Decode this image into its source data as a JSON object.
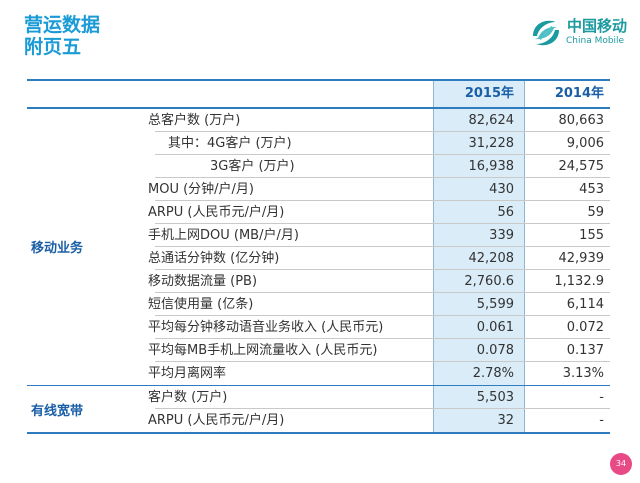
{
  "header": {
    "title_line1": "营运数据",
    "title_line2": "附页五",
    "logo_cn": "中国移动",
    "logo_en": "China Mobile"
  },
  "table": {
    "col_headers": [
      "2015年",
      "2014年"
    ],
    "sections": [
      {
        "name": "移动业务",
        "rows": [
          {
            "label": "总客户数 (万户)",
            "v2015": "82,624",
            "v2014": "80,663"
          },
          {
            "label": "其中：4G客户 (万户)",
            "v2015": "31,228",
            "v2014": "9,006"
          },
          {
            "label": "3G客户 (万户)",
            "v2015": "16,938",
            "v2014": "24,575"
          },
          {
            "label": "MOU (分钟/户/月)",
            "v2015": "430",
            "v2014": "453"
          },
          {
            "label": "ARPU (人民币元/户/月)",
            "v2015": "56",
            "v2014": "59"
          },
          {
            "label": "手机上网DOU (MB/户/月)",
            "v2015": "339",
            "v2014": "155"
          },
          {
            "label": "总通话分钟数 (亿分钟)",
            "v2015": "42,208",
            "v2014": "42,939"
          },
          {
            "label": "移动数据流量 (PB)",
            "v2015": "2,760.6",
            "v2014": "1,132.9"
          },
          {
            "label": "短信使用量 (亿条)",
            "v2015": "5,599",
            "v2014": "6,114"
          },
          {
            "label": "平均每分钟移动语音业务收入 (人民币元)",
            "v2015": "0.061",
            "v2014": "0.072"
          },
          {
            "label": "平均每MB手机上网流量收入 (人民币元)",
            "v2015": "0.078",
            "v2014": "0.137"
          },
          {
            "label": "平均月离网率",
            "v2015": "2.78%",
            "v2014": "3.13%"
          }
        ]
      },
      {
        "name": "有线宽带",
        "rows": [
          {
            "label": "客户数 (万户)",
            "v2015": "5,503",
            "v2014": "-"
          },
          {
            "label": "ARPU (人民币元/户/月)",
            "v2015": "32",
            "v2014": "-"
          }
        ]
      }
    ]
  },
  "page_number": "34",
  "colors": {
    "title": "#1a9bd6",
    "brand": "#1b9a9f",
    "header_text": "#1a5fa6",
    "highlight_col": "#d9ecf8",
    "badge": "#e84a86"
  }
}
